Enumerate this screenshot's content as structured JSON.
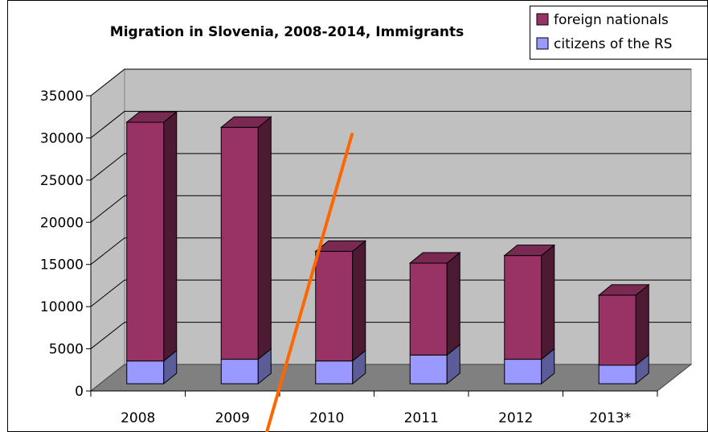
{
  "chart_data": {
    "type": "bar",
    "stacked": true,
    "three_d": true,
    "title": "Migration in Slovenia, 2008-2014, Immigrants",
    "xlabel": "",
    "ylabel": "",
    "categories": [
      "2008",
      "2009",
      "2010",
      "2011",
      "2012",
      "2013*"
    ],
    "series": [
      {
        "name": "citizens of the RS",
        "values": [
          2700,
          2900,
          2700,
          3400,
          2900,
          2200
        ],
        "color": "#9999ff",
        "side_color": "#5c5c99",
        "top_color": "#9999ff"
      },
      {
        "name": "foreign nationals",
        "values": [
          28300,
          27500,
          13000,
          10900,
          12300,
          8300
        ],
        "color": "#993366",
        "side_color": "#4d1a33",
        "top_color": "#7a2952"
      }
    ],
    "ylim": [
      0,
      35000
    ],
    "yticks": [
      0,
      5000,
      10000,
      15000,
      20000,
      25000,
      30000,
      35000
    ],
    "grid": true,
    "legend_position": "top-right",
    "wall_color": "#c0c0c0",
    "floor_color": "#808080",
    "annotation_line_color": "#ff6600"
  }
}
